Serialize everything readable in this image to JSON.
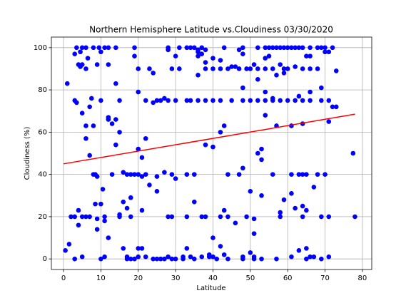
{
  "chart_data": {
    "type": "scatter",
    "title": "Northern Hemisphere Latitude vs.Cloudiness 03/30/2020",
    "x_label": "Latitude",
    "y_label": "Cloudiness (%)",
    "color": "#0000ff",
    "grid": true,
    "xlim": [
      -3.25,
      82.5
    ],
    "ylim": [
      -5,
      105
    ],
    "xticks": [
      0,
      10,
      20,
      30,
      40,
      50,
      60,
      70,
      80
    ],
    "yticks": [
      0,
      20,
      40,
      60,
      80,
      100
    ],
    "regression": {
      "color": "#ff0000",
      "x": [
        0,
        78
      ],
      "values": [
        45,
        68.5
      ]
    },
    "x": [
      3.5,
      5,
      6,
      8,
      9.5,
      11,
      12,
      14,
      19,
      28,
      31,
      33,
      34,
      35,
      37,
      43,
      48,
      52,
      54,
      55,
      56,
      57,
      58,
      59,
      60,
      61,
      62,
      63,
      64,
      66,
      68,
      69,
      70,
      72,
      28,
      36,
      38,
      47,
      4.5,
      10,
      36,
      70,
      71,
      3,
      37,
      48,
      19,
      30,
      36,
      55,
      65,
      66,
      6.5,
      40,
      54,
      42,
      38,
      4,
      5,
      9,
      12,
      51,
      58,
      4.5,
      45,
      46,
      62,
      6,
      20,
      23,
      29,
      31,
      38,
      40,
      42,
      44,
      47,
      49,
      50,
      52,
      54,
      56,
      59,
      60,
      64,
      66,
      68,
      73,
      24,
      59,
      36,
      57,
      52,
      1,
      14,
      48,
      69,
      20,
      54,
      66,
      63,
      7.5,
      27,
      56,
      3,
      10,
      15,
      22,
      25,
      26,
      28,
      30,
      33,
      34,
      36,
      38,
      40,
      42,
      45,
      48,
      50,
      52,
      54,
      56,
      58,
      60,
      62,
      64,
      66,
      69,
      71,
      3.5,
      24,
      7,
      72,
      73,
      5,
      54,
      12,
      12,
      14,
      71,
      13,
      64,
      6,
      8,
      43,
      57,
      61,
      15,
      42,
      6,
      22,
      14,
      38,
      40,
      20,
      53,
      52,
      77.5,
      7,
      21,
      53,
      48,
      16,
      27,
      8,
      8.5,
      13,
      17,
      18,
      19,
      20,
      22,
      29,
      33,
      35,
      44,
      47,
      56,
      61,
      63,
      64,
      65,
      68,
      70,
      9,
      21,
      25,
      30,
      23,
      67,
      10.5,
      25,
      50,
      61,
      53,
      18,
      59,
      16,
      35,
      8.5,
      10,
      64,
      17,
      62,
      4,
      21,
      43,
      65,
      58,
      15,
      2,
      3,
      5,
      6,
      7,
      11,
      15,
      18,
      28,
      29,
      33,
      37,
      38,
      42,
      44,
      49,
      58,
      64,
      69,
      71,
      78,
      9,
      51,
      11,
      46,
      4,
      9,
      51,
      12,
      40,
      1.5,
      42,
      16,
      20,
      21,
      33,
      65,
      0.5,
      63,
      50,
      43,
      39,
      5,
      11,
      17,
      20,
      22,
      28,
      32,
      34,
      37,
      39,
      40,
      48,
      51,
      61,
      66,
      67,
      71,
      3,
      10,
      17,
      18,
      19,
      24,
      25,
      26,
      27,
      29,
      30,
      32,
      35,
      41,
      44,
      48,
      51,
      53,
      57,
      65,
      69
    ],
    "values": [
      100,
      100,
      100,
      100,
      100,
      100,
      100,
      100,
      100,
      100,
      100,
      100,
      100,
      100,
      100,
      100,
      100,
      100,
      100,
      100,
      100,
      100,
      100,
      100,
      100,
      100,
      100,
      100,
      100,
      100,
      100,
      100,
      100,
      100,
      99,
      99,
      99,
      99,
      98,
      98,
      98,
      98,
      98,
      97,
      97,
      97,
      96,
      96,
      96,
      96,
      96,
      96,
      95,
      95,
      95,
      94,
      93,
      92,
      92,
      92,
      92,
      92,
      92,
      91,
      91,
      91,
      91,
      90,
      90,
      90,
      90,
      90,
      90,
      90,
      90,
      90,
      90,
      90,
      90,
      90,
      90,
      90,
      90,
      90,
      90,
      90,
      90,
      89,
      88,
      88,
      87,
      87,
      85,
      83,
      83,
      81,
      81,
      79,
      79,
      79,
      77,
      76,
      76,
      76,
      75,
      75,
      75,
      75,
      75,
      75,
      75,
      75,
      75,
      75,
      75,
      75,
      75,
      75,
      75,
      75,
      75,
      75,
      75,
      75,
      75,
      75,
      75,
      75,
      75,
      75,
      75,
      74,
      74,
      72,
      72,
      72,
      69,
      68,
      67,
      66,
      66,
      65,
      64,
      64,
      63,
      63,
      63,
      63,
      63,
      60,
      60,
      57,
      57,
      54,
      54,
      53,
      52,
      52,
      50,
      50,
      49,
      48,
      47,
      43,
      41,
      41,
      40,
      40,
      40,
      40,
      40,
      40,
      40,
      40,
      40,
      40,
      40,
      40,
      40,
      40,
      40,
      40,
      40,
      40,
      40,
      40,
      39,
      39,
      39,
      38,
      35,
      34,
      33,
      32,
      32,
      31,
      30,
      29,
      28,
      27,
      27,
      26,
      26,
      25,
      24,
      24,
      23,
      23,
      23,
      23,
      22,
      21,
      20,
      20,
      20,
      20,
      20,
      20,
      20,
      20,
      20,
      20,
      20,
      20,
      20,
      20,
      20,
      20,
      20,
      20,
      20,
      20,
      20,
      19,
      19,
      18,
      17,
      16,
      14,
      12,
      10,
      10,
      7,
      6,
      5,
      5,
      5,
      5,
      5,
      4,
      4,
      3,
      2,
      2,
      1,
      1,
      1,
      1,
      1,
      1,
      1,
      1,
      1,
      1,
      1,
      1,
      1,
      1,
      1,
      1,
      1,
      0,
      0,
      0,
      0,
      0,
      0,
      0,
      0,
      0,
      0,
      0,
      0,
      0,
      0,
      0,
      0,
      0,
      0,
      0,
      0,
      0
    ]
  }
}
